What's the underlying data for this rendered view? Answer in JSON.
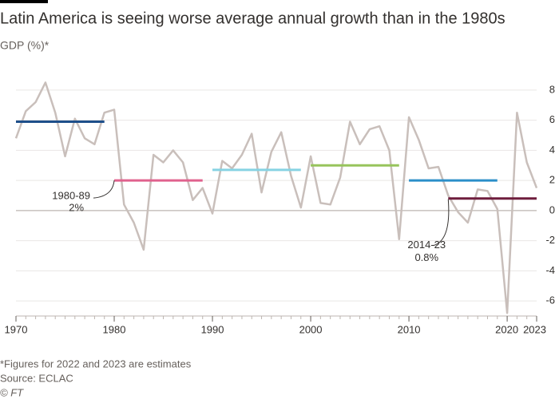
{
  "chart_data": {
    "type": "line",
    "title": "Latin America is seeing worse average annual growth than in the 1980s",
    "subtitle": "GDP (%)*",
    "x": [
      1970,
      1971,
      1972,
      1973,
      1974,
      1975,
      1976,
      1977,
      1978,
      1979,
      1980,
      1981,
      1982,
      1983,
      1984,
      1985,
      1986,
      1987,
      1988,
      1989,
      1990,
      1991,
      1992,
      1993,
      1994,
      1995,
      1996,
      1997,
      1998,
      1999,
      2000,
      2001,
      2002,
      2003,
      2004,
      2005,
      2006,
      2007,
      2008,
      2009,
      2010,
      2011,
      2012,
      2013,
      2014,
      2015,
      2016,
      2017,
      2018,
      2019,
      2020,
      2021,
      2022,
      2023
    ],
    "series": [
      {
        "color": "#c9bfbb",
        "values": [
          4.8,
          6.6,
          7.2,
          8.5,
          6.5,
          3.6,
          6.1,
          4.8,
          4.4,
          6.5,
          6.7,
          0.4,
          -0.8,
          -2.6,
          3.7,
          3.2,
          4.0,
          3.2,
          0.7,
          1.5,
          -0.2,
          3.3,
          2.8,
          3.7,
          5.1,
          1.2,
          3.9,
          5.2,
          2.3,
          0.2,
          3.6,
          0.5,
          0.4,
          2.2,
          5.9,
          4.4,
          5.4,
          5.6,
          4.0,
          -1.9,
          6.2,
          4.7,
          2.8,
          2.9,
          1.0,
          -0.1,
          -0.8,
          1.4,
          1.3,
          0.1,
          -6.8,
          6.5,
          3.2,
          1.5
        ]
      }
    ],
    "averages": [
      {
        "start": 1970,
        "end": 1979,
        "value": 5.9,
        "color": "#1e4f8a"
      },
      {
        "start": 1980,
        "end": 1989,
        "value": 2,
        "color": "#e0628e",
        "label": "1980-89",
        "value_label": "2%"
      },
      {
        "start": 1990,
        "end": 1999,
        "value": 2.7,
        "color": "#86d3e3"
      },
      {
        "start": 2000,
        "end": 2009,
        "value": 3.0,
        "color": "#97c45c"
      },
      {
        "start": 2010,
        "end": 2019,
        "value": 2.0,
        "color": "#2b8fc9"
      },
      {
        "start": 2014,
        "end": 2023,
        "value": 0.8,
        "color": "#6e1d3d",
        "label": "2014-23",
        "value_label": "0.8%"
      }
    ],
    "xlim": [
      1970,
      2023
    ],
    "xticks": [
      1970,
      1980,
      1990,
      2000,
      2010,
      2020,
      2023
    ],
    "ylim": [
      -7,
      9
    ],
    "yticks": [
      -6,
      -4,
      -2,
      0,
      2,
      4,
      6,
      8
    ],
    "grid": true,
    "notes": [
      "*Figures for 2022 and 2023 are estimates",
      "Source: ECLAC",
      "© FT"
    ]
  }
}
